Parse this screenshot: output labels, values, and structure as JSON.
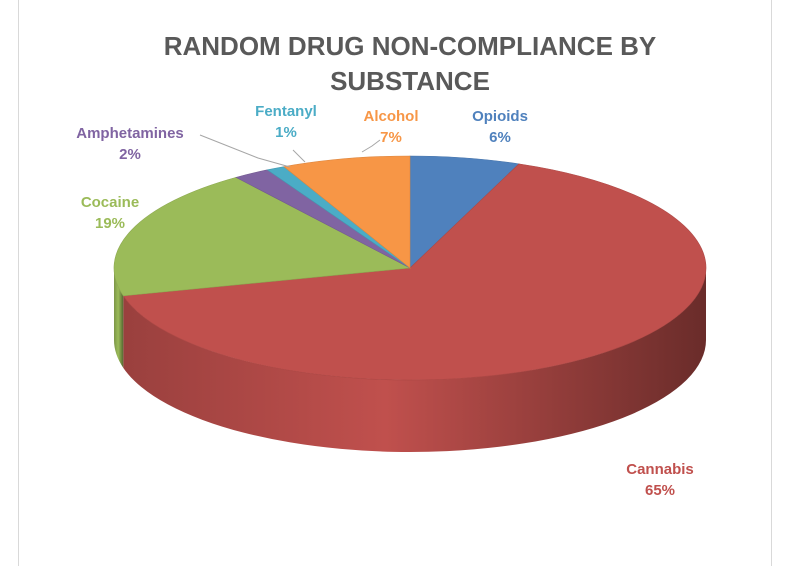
{
  "chart_data": {
    "type": "pie",
    "style": "3d",
    "title_lines": [
      "RANDOM DRUG NON-COMPLIANCE BY",
      "SUBSTANCE"
    ],
    "slices": [
      {
        "label": "Opioids",
        "value": 6,
        "value_text": "6%",
        "color": "#4f81bd"
      },
      {
        "label": "Cannabis",
        "value": 65,
        "value_text": "65%",
        "color": "#c0504d"
      },
      {
        "label": "Cocaine",
        "value": 19,
        "value_text": "19%",
        "color": "#9bbb59"
      },
      {
        "label": "Amphetamines",
        "value": 2,
        "value_text": "2%",
        "color": "#8064a2"
      },
      {
        "label": "Fentanyl",
        "value": 1,
        "value_text": "1%",
        "color": "#4bacc6"
      },
      {
        "label": "Alcohol",
        "value": 7,
        "value_text": "7%",
        "color": "#f79646"
      }
    ],
    "legend": "none"
  }
}
